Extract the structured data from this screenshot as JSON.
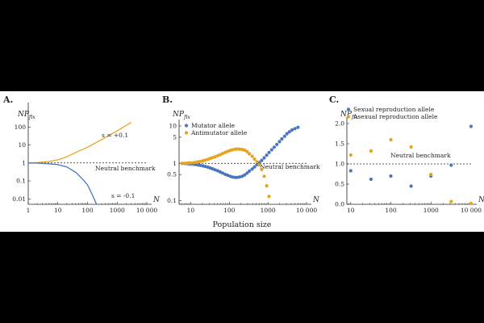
{
  "xlabel": "Population size",
  "colors": {
    "blue": "#4a76bd",
    "orange": "#e8a31e"
  },
  "chart_data": [
    {
      "panel": "A.",
      "type": "line",
      "ylabel": "NP",
      "ylabel_sub": "fix",
      "xlabel": "N",
      "xscale": "log",
      "yscale": "log",
      "xlim": [
        1,
        10000
      ],
      "ylim": [
        0.005,
        1000
      ],
      "xticks": [
        1,
        10,
        100,
        1000,
        10000
      ],
      "xtick_labels": [
        "1",
        "10",
        "100",
        "1000",
        "10 000"
      ],
      "yticks": [
        0.01,
        0.1,
        1,
        10,
        100
      ],
      "ytick_labels": [
        "0.01",
        "0.1",
        "1",
        "10",
        "100"
      ],
      "benchmark": {
        "y": 1,
        "label": "Neutral benchmark"
      },
      "series": [
        {
          "name": "s = +0.1",
          "color": "#e8a31e",
          "x": [
            1,
            2,
            5,
            10,
            20,
            50,
            100,
            200,
            500,
            1000,
            3000
          ],
          "y": [
            1,
            1.05,
            1.2,
            1.5,
            2.2,
            4.5,
            7.5,
            14,
            32,
            62,
            180
          ]
        },
        {
          "name": "s = -0.1",
          "color": "#4a76bd",
          "x": [
            1,
            2,
            5,
            10,
            20,
            40,
            70,
            100,
            150,
            200
          ],
          "y": [
            1,
            0.98,
            0.9,
            0.8,
            0.6,
            0.3,
            0.12,
            0.06,
            0.015,
            0.005
          ]
        }
      ]
    },
    {
      "panel": "B.",
      "type": "scatter",
      "ylabel": "NP",
      "ylabel_sub": "fix",
      "xlabel": "N",
      "xscale": "log",
      "yscale": "log",
      "xlim": [
        5,
        10000
      ],
      "ylim": [
        0.08,
        10
      ],
      "xticks": [
        10,
        100,
        1000,
        10000
      ],
      "xtick_labels": [
        "10",
        "100",
        "1000",
        "10 000"
      ],
      "yticks": [
        0.1,
        0.5,
        1,
        5,
        10
      ],
      "ytick_labels": [
        "0.1",
        "0.5",
        "1",
        "5",
        "10"
      ],
      "benchmark": {
        "y": 1,
        "label": "Neutral benchmark"
      },
      "series": [
        {
          "name": "Mutator allele",
          "color": "#4a76bd",
          "x": [
            6,
            7,
            8,
            9,
            10,
            12,
            14,
            16,
            18,
            21,
            24,
            28,
            32,
            37,
            43,
            50,
            58,
            67,
            78,
            90,
            105,
            120,
            140,
            160,
            185,
            215,
            250,
            290,
            330,
            390,
            450,
            520,
            600,
            690,
            800,
            930,
            1070,
            1250,
            1450,
            1700,
            2000,
            2300,
            2700,
            3100,
            3600,
            4200,
            5000,
            6000
          ],
          "y": [
            1.0,
            0.99,
            0.98,
            0.97,
            0.96,
            0.94,
            0.92,
            0.9,
            0.88,
            0.85,
            0.82,
            0.79,
            0.75,
            0.71,
            0.67,
            0.63,
            0.59,
            0.55,
            0.51,
            0.48,
            0.45,
            0.43,
            0.42,
            0.42,
            0.43,
            0.45,
            0.49,
            0.55,
            0.62,
            0.7,
            0.8,
            0.92,
            1.05,
            1.2,
            1.4,
            1.65,
            1.95,
            2.3,
            2.7,
            3.2,
            3.8,
            4.5,
            5.3,
            6.2,
            7.0,
            7.8,
            8.5,
            9.2
          ]
        },
        {
          "name": "Antimutator allele",
          "color": "#e8a31e",
          "x": [
            6,
            7,
            8,
            9,
            10,
            12,
            14,
            16,
            18,
            21,
            24,
            28,
            32,
            37,
            43,
            50,
            58,
            67,
            78,
            90,
            105,
            120,
            140,
            160,
            185,
            215,
            250,
            290,
            330,
            390,
            450,
            520,
            600,
            690,
            800,
            930,
            1070
          ],
          "y": [
            1.0,
            1.0,
            1.01,
            1.02,
            1.03,
            1.05,
            1.07,
            1.1,
            1.13,
            1.17,
            1.22,
            1.28,
            1.35,
            1.42,
            1.5,
            1.6,
            1.7,
            1.82,
            1.95,
            2.08,
            2.2,
            2.3,
            2.38,
            2.42,
            2.4,
            2.35,
            2.25,
            2.05,
            1.8,
            1.55,
            1.3,
            1.1,
            0.9,
            0.68,
            0.45,
            0.25,
            0.13
          ]
        }
      ]
    },
    {
      "panel": "C.",
      "type": "scatter",
      "ylabel": "NP",
      "ylabel_sub": "fix",
      "xlabel": "N",
      "xscale": "log",
      "yscale": "linear",
      "xlim": [
        8,
        10500
      ],
      "ylim": [
        0,
        2.0
      ],
      "xticks": [
        10,
        100,
        1000,
        10000
      ],
      "xtick_labels": [
        "10",
        "100",
        "1000",
        "10 000"
      ],
      "yticks": [
        0.0,
        0.5,
        1.0,
        1.5,
        2.0
      ],
      "ytick_labels": [
        "0.0",
        "0.5",
        "1.0",
        "1.5",
        "2.0"
      ],
      "benchmark": {
        "y": 1.0,
        "label": "Neutral benchmark"
      },
      "series": [
        {
          "name": "Sexual reproduction allele",
          "color": "#4a76bd",
          "x": [
            10,
            32,
            100,
            320,
            1000,
            3200,
            10000
          ],
          "y": [
            0.83,
            0.62,
            0.7,
            0.45,
            0.7,
            0.97,
            1.93
          ]
        },
        {
          "name": "Asexual reproduction allele",
          "color": "#e8a31e",
          "x": [
            10,
            32,
            100,
            320,
            1000,
            3200,
            10000
          ],
          "y": [
            1.22,
            1.32,
            1.6,
            1.42,
            0.74,
            0.07,
            0.02
          ]
        }
      ]
    }
  ]
}
